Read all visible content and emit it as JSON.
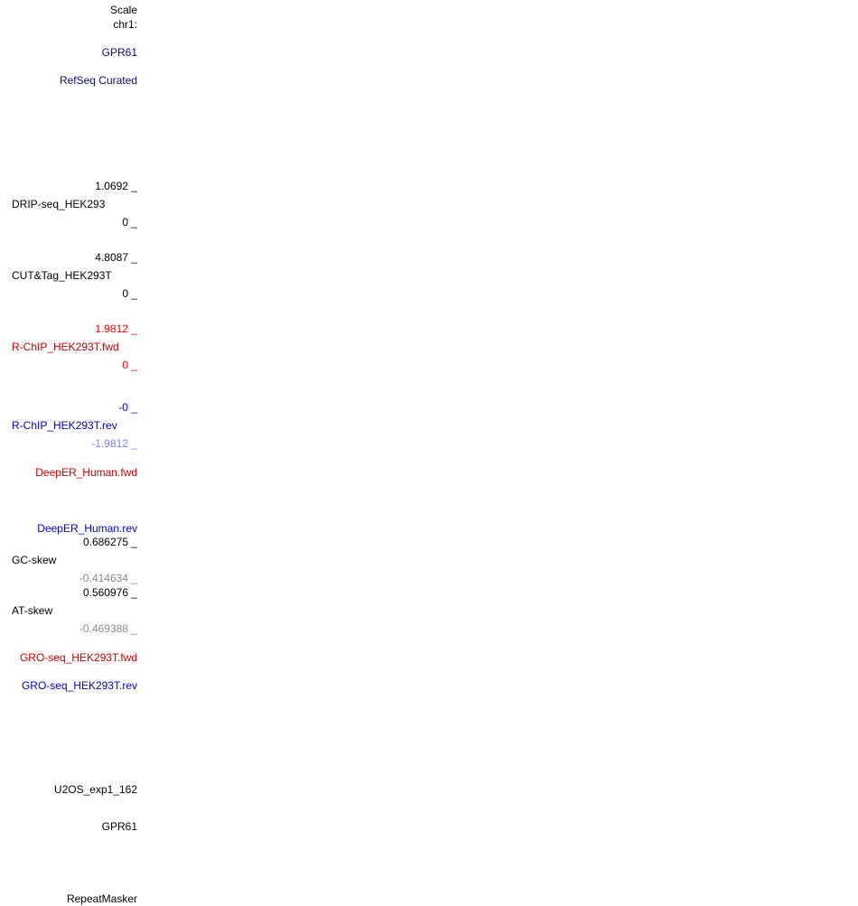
{
  "ruler": {
    "scale_label": "Scale",
    "chrom_label": "chr1:"
  },
  "tracks": {
    "gene_top": {
      "label": "GPR61",
      "color": "#0c0c78"
    },
    "refseq": {
      "label": "RefSeq Curated",
      "color": "#0c0c78"
    },
    "drip_seq": {
      "name": "DRIP-seq_HEK293",
      "max": "1.0692 _",
      "min": "0 _"
    },
    "cut_tag": {
      "name": "CUT&Tag_HEK293T",
      "max": "4.8087 _",
      "min": "0 _"
    },
    "rchip_fwd": {
      "name": "R-ChIP_HEK293T.fwd",
      "max": "1.9812 _",
      "min": "0 _",
      "color": "#c00000"
    },
    "rchip_rev": {
      "name": "R-ChIP_HEK293T.rev",
      "max": "-0 _",
      "min": "-1.9812 _",
      "color": "#0000c8"
    },
    "deeper_fwd": {
      "label": "DeepER_Human.fwd",
      "color": "#cc0000"
    },
    "deeper_rev": {
      "label": "DeepER_Human.rev",
      "color": "#0000cc"
    },
    "gc_skew": {
      "name": "GC-skew",
      "max": "0.686275 _",
      "min": "-0.414634 _"
    },
    "at_skew": {
      "name": "AT-skew",
      "max": "0.560976 _",
      "min": "-0.469388 _"
    },
    "gro_fwd": {
      "label": "GRO-seq_HEK293T.fwd",
      "color": "#cc0000"
    },
    "gro_rev": {
      "label": "GRO-seq_HEK293T.rev",
      "color": "#0000cc"
    },
    "u2os": {
      "label": "U2OS_exp1_162"
    },
    "gene_bottom": {
      "label": "GPR61"
    },
    "repeatmasker": {
      "label": "RepeatMasker"
    }
  }
}
